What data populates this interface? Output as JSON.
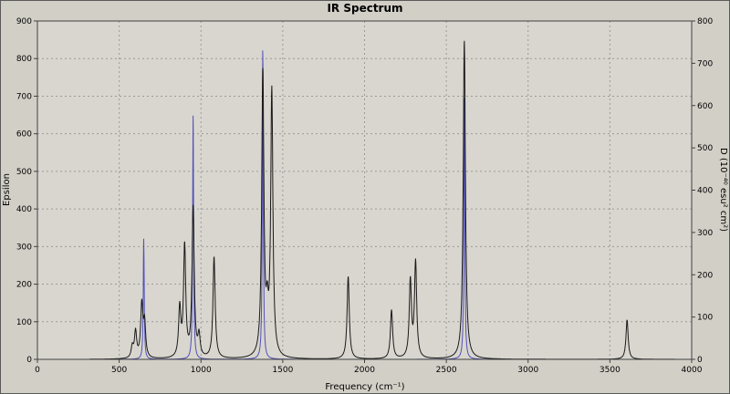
{
  "chart_data": {
    "type": "line",
    "title": "IR Spectrum",
    "xlabel": "Frequency (cm⁻¹)",
    "ylabel_left": "Epsilon",
    "ylabel_right": "D (10⁻⁴⁰ esu² cm²)",
    "xlim": [
      0,
      4000
    ],
    "ylim_left": [
      0,
      900
    ],
    "ylim_right": [
      0,
      800
    ],
    "x_ticks": [
      0,
      500,
      1000,
      1500,
      2000,
      2500,
      3000,
      3500,
      4000
    ],
    "y_ticks_left": [
      0,
      100,
      200,
      300,
      400,
      500,
      600,
      700,
      800,
      900
    ],
    "y_ticks_right": [
      0,
      100,
      200,
      300,
      400,
      500,
      600,
      700,
      800
    ],
    "grid": true,
    "grid_style": "dashed",
    "x_draw_range": [
      320,
      3900
    ],
    "colors": {
      "outer_background": "#d2cfc7",
      "plot_background": "#d9d6cf",
      "grid": "#9a9a9a",
      "axis": "#404040",
      "epsilon_line": "#1a1a1a",
      "d_line": "#5151b8"
    },
    "series": [
      {
        "name": "D",
        "axis": "right",
        "color": "#5151b8",
        "hwhm": 3.5,
        "peaks": [
          [
            650,
            285
          ],
          [
            952,
            588
          ],
          [
            1378,
            745
          ],
          [
            2610,
            630
          ]
        ]
      },
      {
        "name": "Epsilon",
        "axis": "left",
        "color": "#1a1a1a",
        "hwhm": 8,
        "peaks": [
          [
            580,
            30
          ],
          [
            600,
            70
          ],
          [
            638,
            140
          ],
          [
            655,
            90
          ],
          [
            870,
            130
          ],
          [
            900,
            295
          ],
          [
            952,
            400
          ],
          [
            988,
            55
          ],
          [
            1080,
            270
          ],
          [
            1378,
            755
          ],
          [
            1405,
            95
          ],
          [
            1433,
            705
          ],
          [
            1900,
            220
          ],
          [
            2165,
            130
          ],
          [
            2280,
            205
          ],
          [
            2312,
            255
          ],
          [
            2610,
            850
          ],
          [
            3605,
            105
          ]
        ]
      }
    ]
  }
}
